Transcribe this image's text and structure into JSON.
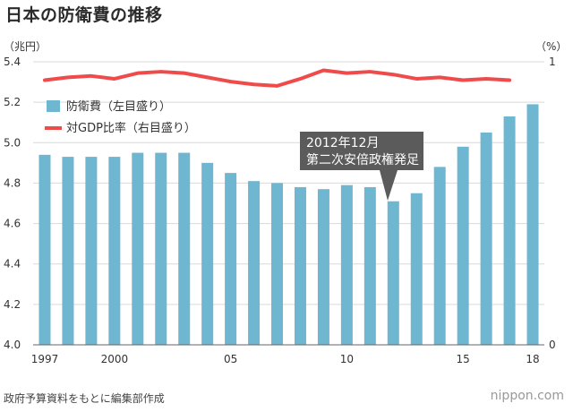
{
  "title": "日本の防衛費の推移",
  "source": "政府予算資料をもとに編集部作成",
  "brand": "nippon.com",
  "colors": {
    "bar": "#6fb6d1",
    "line": "#ef4b4b",
    "annotation_bg": "#5b5b5b",
    "grid": "#d9d9d9"
  },
  "chart_data": {
    "type": "bar",
    "left_unit": "（兆円）",
    "right_unit": "（%）",
    "x": [
      1997,
      1998,
      1999,
      2000,
      2001,
      2002,
      2003,
      2004,
      2005,
      2006,
      2007,
      2008,
      2009,
      2010,
      2011,
      2012,
      2013,
      2014,
      2015,
      2016,
      2017,
      2018
    ],
    "x_tick_labels": [
      {
        "x": 1997,
        "label": "1997"
      },
      {
        "x": 2000,
        "label": "2000"
      },
      {
        "x": 2005,
        "label": "05"
      },
      {
        "x": 2010,
        "label": "10"
      },
      {
        "x": 2015,
        "label": "15"
      },
      {
        "x": 2018,
        "label": "18"
      }
    ],
    "ylim": [
      4.0,
      5.4
    ],
    "y_ticks": [
      "4.0",
      "4.2",
      "4.4",
      "4.6",
      "4.8",
      "5.0",
      "5.2",
      "5.4"
    ],
    "y2lim": [
      0,
      1
    ],
    "y2_ticks": [
      "0",
      "1"
    ],
    "grid": true,
    "legend_position": "top-left",
    "series": [
      {
        "name": "防衛費（左目盛り）",
        "type": "bar",
        "axis": "left",
        "values": [
          4.94,
          4.93,
          4.93,
          4.93,
          4.95,
          4.95,
          4.95,
          4.9,
          4.85,
          4.81,
          4.8,
          4.78,
          4.77,
          4.79,
          4.78,
          4.71,
          4.75,
          4.88,
          4.98,
          5.05,
          5.13,
          5.19
        ]
      },
      {
        "name": "対GDP比率（右目盛り）",
        "type": "line",
        "axis": "right",
        "values": [
          0.935,
          0.945,
          0.95,
          0.94,
          0.96,
          0.965,
          0.96,
          0.945,
          0.93,
          0.92,
          0.915,
          0.94,
          0.97,
          0.96,
          0.965,
          0.955,
          0.94,
          0.945,
          0.935,
          0.94,
          0.935,
          null
        ]
      }
    ],
    "annotation": {
      "line1": "2012年12月",
      "line2": "第二次安倍政権発足",
      "x": 2012
    }
  }
}
